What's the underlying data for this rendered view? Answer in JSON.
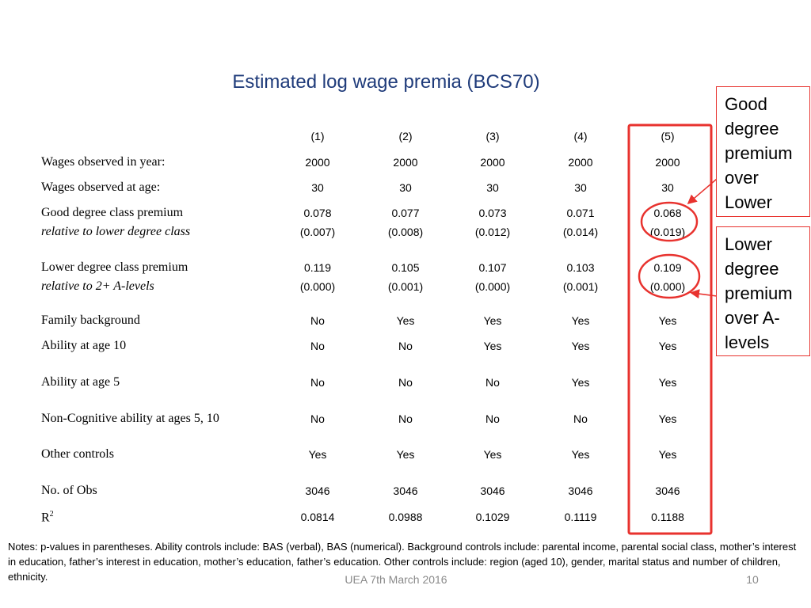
{
  "title": "Estimated log wage premia (BCS70)",
  "columns": [
    "(1)",
    "(2)",
    "(3)",
    "(4)",
    "(5)"
  ],
  "rows": [
    {
      "label": "Wages observed in year:",
      "italic": false,
      "values": [
        "2000",
        "2000",
        "2000",
        "2000",
        "2000"
      ]
    },
    {
      "label": "Wages observed at age:",
      "italic": false,
      "values": [
        "30",
        "30",
        "30",
        "30",
        "30"
      ]
    },
    {
      "label": "Good degree class premium",
      "italic": false,
      "values": [
        "0.078",
        "0.077",
        "0.073",
        "0.071",
        "0.068"
      ]
    },
    {
      "label": "relative to lower degree class",
      "italic": true,
      "values": [
        "(0.007)",
        "(0.008)",
        "(0.012)",
        "(0.014)",
        "(0.019)"
      ]
    },
    {
      "label": "Lower degree class premium",
      "italic": false,
      "values": [
        "0.119",
        "0.105",
        "0.107",
        "0.103",
        "0.109"
      ]
    },
    {
      "label": "relative to 2+ A-levels",
      "italic": true,
      "values": [
        "(0.000)",
        "(0.001)",
        "(0.000)",
        "(0.001)",
        "(0.000)"
      ]
    },
    {
      "label": "Family background",
      "italic": false,
      "values": [
        "No",
        "Yes",
        "Yes",
        "Yes",
        "Yes"
      ]
    },
    {
      "label": "Ability at age 10",
      "italic": false,
      "values": [
        "No",
        "No",
        "Yes",
        "Yes",
        "Yes"
      ]
    },
    {
      "label": "Ability at age 5",
      "italic": false,
      "values": [
        "No",
        "No",
        "No",
        "Yes",
        "Yes"
      ]
    },
    {
      "label": "Non-Cognitive ability at ages 5, 10",
      "italic": false,
      "values": [
        "No",
        "No",
        "No",
        "No",
        "Yes"
      ]
    },
    {
      "label": "Other controls",
      "italic": false,
      "values": [
        "Yes",
        "Yes",
        "Yes",
        "Yes",
        "Yes"
      ]
    },
    {
      "label": "No. of Obs",
      "italic": false,
      "values": [
        "3046",
        "3046",
        "3046",
        "3046",
        "3046"
      ]
    },
    {
      "label": "R",
      "italic": false,
      "sup": "2",
      "values": [
        "0.0814",
        "0.0988",
        "0.1029",
        "0.1119",
        "0.1188"
      ]
    }
  ],
  "annotations": {
    "good": "Good degree premium over Lower",
    "lower": "Lower degree premium over A-levels",
    "color": "#e8322e"
  },
  "notes": "Notes: p-values in parentheses. Ability controls include: BAS (verbal), BAS (numerical).  Background controls include: parental income, parental social class, mother’s interest in education, father’s interest in education, mother’s education, father’s education. Other controls include: region (aged 10), gender, marital status and number of children, ethnicity.",
  "footer": {
    "event": "UEA 7th March 2016",
    "page": "10"
  }
}
